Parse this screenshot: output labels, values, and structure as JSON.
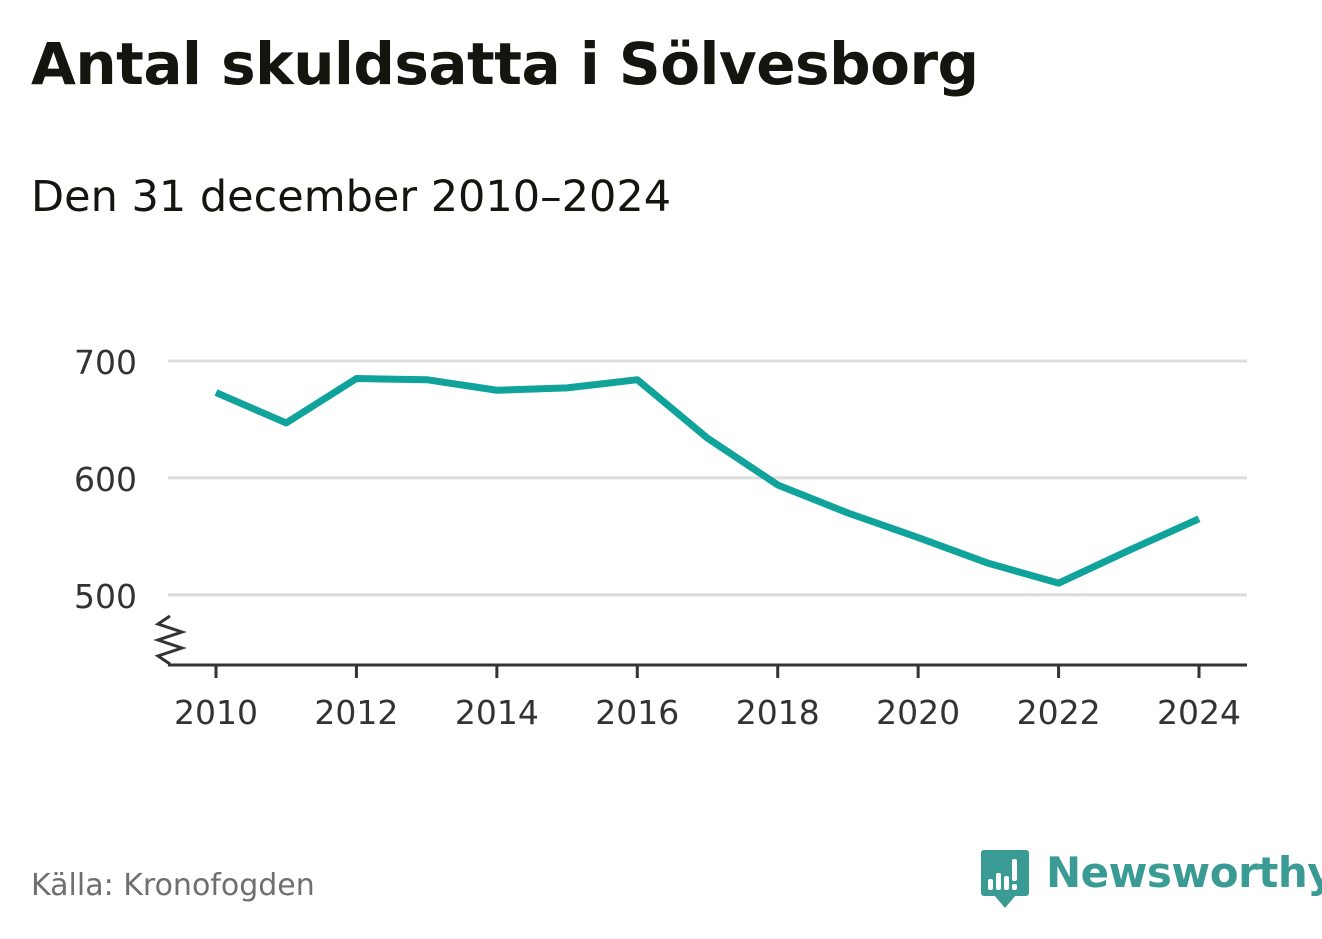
{
  "header": {
    "title": "Antal skuldsatta i Sölvesborg",
    "subtitle": "Den 31 december 2010–2024"
  },
  "footer": {
    "source": "Källa: Kronofogden",
    "brand": "Newsworthy"
  },
  "colors": {
    "line": "#0fa39c",
    "grid": "#dcdcdc",
    "axis": "#333333",
    "brand": "#3a9b95"
  },
  "chart_data": {
    "type": "line",
    "title": "Antal skuldsatta i Sölvesborg",
    "subtitle": "Den 31 december 2010–2024",
    "xlabel": "",
    "ylabel": "",
    "x": [
      2010,
      2011,
      2012,
      2013,
      2014,
      2015,
      2016,
      2017,
      2018,
      2019,
      2020,
      2021,
      2022,
      2023,
      2024
    ],
    "series": [
      {
        "values": [
          673,
          647,
          685,
          684,
          675,
          677,
          684,
          634,
          594,
          570,
          549,
          527,
          510,
          538,
          565
        ]
      }
    ],
    "xticks": [
      "2010",
      "2012",
      "2014",
      "2016",
      "2018",
      "2020",
      "2022",
      "2024"
    ],
    "yticks": [
      "500",
      "600",
      "700"
    ],
    "ylim": [
      440,
      700
    ],
    "xlim": [
      2010,
      2024
    ],
    "y_axis_break": true,
    "grid": true,
    "legend": "none"
  }
}
